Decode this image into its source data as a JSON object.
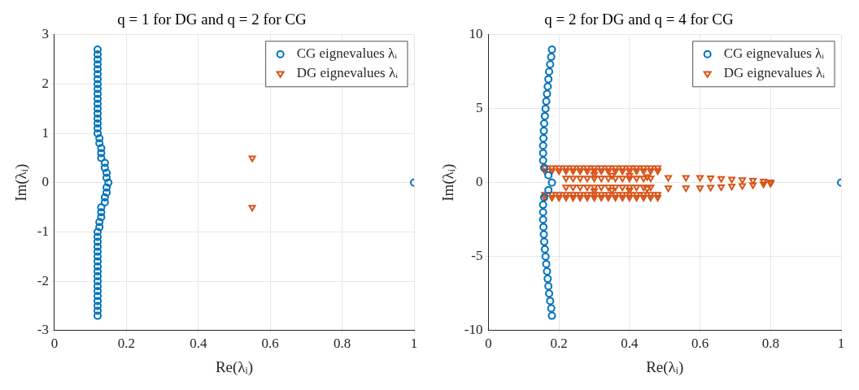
{
  "chart_data": [
    {
      "type": "scatter",
      "title": "q = 1 for DG and q = 2 for CG",
      "xlabel": "Re(λᵢ)",
      "ylabel": "Im(λᵢ)",
      "xlim": [
        0,
        1
      ],
      "xticks": [
        0,
        0.2,
        0.4,
        0.6,
        0.8,
        1
      ],
      "ylim": [
        -3,
        3
      ],
      "yticks": [
        -3,
        -2,
        -1,
        0,
        1,
        2,
        3
      ],
      "grid": true,
      "legend": "top right",
      "series": [
        {
          "name": "CG eignevalues λᵢ",
          "color": "#0072bd",
          "marker": "circle",
          "x": [
            0.12,
            0.12,
            0.12,
            0.12,
            0.12,
            0.12,
            0.12,
            0.12,
            0.12,
            0.12,
            0.12,
            0.12,
            0.12,
            0.12,
            0.12,
            0.12,
            0.12,
            0.12,
            0.125,
            0.125,
            0.13,
            0.13,
            0.13,
            0.14,
            0.14,
            0.145,
            0.145,
            0.15,
            0.145,
            0.145,
            0.14,
            0.14,
            0.13,
            0.13,
            0.13,
            0.125,
            0.125,
            0.12,
            0.12,
            0.12,
            0.12,
            0.12,
            0.12,
            0.12,
            0.12,
            0.12,
            0.12,
            0.12,
            0.12,
            0.12,
            0.12,
            0.12,
            0.12,
            0.12,
            0.12,
            1
          ],
          "values": [
            -2.7,
            -2.6,
            -2.5,
            -2.4,
            -2.3,
            -2.2,
            -2.1,
            -2,
            -1.9,
            -1.8,
            -1.7,
            -1.6,
            -1.5,
            -1.4,
            -1.3,
            -1.2,
            -1.1,
            -1,
            -0.9,
            -0.8,
            -0.7,
            -0.6,
            -0.5,
            -0.4,
            -0.3,
            -0.2,
            -0.1,
            0,
            0.1,
            0.2,
            0.3,
            0.4,
            0.5,
            0.6,
            0.7,
            0.8,
            0.9,
            1,
            1.1,
            1.2,
            1.3,
            1.4,
            1.5,
            1.6,
            1.7,
            1.8,
            1.9,
            2,
            2.1,
            2.2,
            2.3,
            2.4,
            2.5,
            2.6,
            2.7,
            0
          ]
        },
        {
          "name": "DG eignevalues λᵢ",
          "color": "#d95319",
          "marker": "triangle",
          "x": [
            0.55,
            0.55
          ],
          "values": [
            0.5,
            -0.5
          ]
        }
      ]
    },
    {
      "type": "scatter",
      "title": "q = 2 for DG and q = 4 for CG",
      "xlabel": "Re(λᵢ)",
      "ylabel": "Im(λᵢ)",
      "xlim": [
        0,
        1
      ],
      "xticks": [
        0,
        0.2,
        0.4,
        0.6,
        0.8,
        1
      ],
      "ylim": [
        -10,
        10
      ],
      "yticks": [
        -10,
        -5,
        0,
        5,
        10
      ],
      "grid": true,
      "legend": "top right",
      "series": [
        {
          "name": "CG eignevalues λᵢ",
          "color": "#0072bd",
          "marker": "circle",
          "x": [
            0.18,
            0.178,
            0.175,
            0.172,
            0.17,
            0.168,
            0.166,
            0.164,
            0.162,
            0.16,
            0.158,
            0.157,
            0.156,
            0.155,
            0.155,
            0.155,
            0.158,
            0.17,
            0.18,
            0.17,
            0.158,
            0.155,
            0.155,
            0.155,
            0.156,
            0.157,
            0.158,
            0.16,
            0.162,
            0.164,
            0.166,
            0.168,
            0.17,
            0.172,
            0.175,
            0.178,
            0.18,
            1
          ],
          "values": [
            -9,
            -8.5,
            -8,
            -7.5,
            -7,
            -6.5,
            -6,
            -5.5,
            -5,
            -4.5,
            -4,
            -3.5,
            -3,
            -2.5,
            -2,
            -1.5,
            -1,
            -0.5,
            0,
            0.5,
            1,
            1.5,
            2,
            2.5,
            3,
            3.5,
            4,
            4.5,
            5,
            5.5,
            6,
            6.5,
            7,
            7.5,
            8,
            8.5,
            9,
            0
          ]
        },
        {
          "name": "DG eignevalues λᵢ",
          "color": "#d95319",
          "marker": "triangle",
          "x": [
            0.16,
            0.18,
            0.2,
            0.22,
            0.24,
            0.26,
            0.28,
            0.3,
            0.32,
            0.34,
            0.36,
            0.38,
            0.4,
            0.42,
            0.44,
            0.46,
            0.48,
            0.16,
            0.18,
            0.2,
            0.22,
            0.24,
            0.26,
            0.28,
            0.3,
            0.32,
            0.34,
            0.36,
            0.38,
            0.4,
            0.42,
            0.44,
            0.46,
            0.48,
            0.16,
            0.18,
            0.2,
            0.22,
            0.24,
            0.26,
            0.28,
            0.3,
            0.32,
            0.34,
            0.36,
            0.38,
            0.4,
            0.42,
            0.44,
            0.46,
            0.48,
            0.16,
            0.18,
            0.2,
            0.22,
            0.24,
            0.26,
            0.28,
            0.3,
            0.32,
            0.34,
            0.36,
            0.38,
            0.4,
            0.42,
            0.44,
            0.46,
            0.48,
            0.22,
            0.24,
            0.26,
            0.28,
            0.3,
            0.32,
            0.34,
            0.36,
            0.38,
            0.4,
            0.42,
            0.44,
            0.46,
            0.22,
            0.24,
            0.26,
            0.28,
            0.3,
            0.32,
            0.34,
            0.36,
            0.38,
            0.4,
            0.42,
            0.44,
            0.46,
            0.3,
            0.35,
            0.4,
            0.45,
            0.3,
            0.35,
            0.4,
            0.45,
            0.51,
            0.56,
            0.6,
            0.63,
            0.66,
            0.69,
            0.72,
            0.75,
            0.78,
            0.8,
            0.51,
            0.56,
            0.6,
            0.63,
            0.66,
            0.69,
            0.72,
            0.75,
            0.78,
            0.8
          ],
          "values": [
            1,
            1,
            1,
            1,
            1,
            1,
            1,
            1,
            1,
            1,
            1,
            1,
            1,
            1,
            1,
            1,
            1,
            0.8,
            0.8,
            0.8,
            0.8,
            0.8,
            0.8,
            0.8,
            0.8,
            0.8,
            0.8,
            0.8,
            0.8,
            0.8,
            0.8,
            0.8,
            0.8,
            0.8,
            -0.8,
            -0.8,
            -0.8,
            -0.8,
            -0.8,
            -0.8,
            -0.8,
            -0.8,
            -0.8,
            -0.8,
            -0.8,
            -0.8,
            -0.8,
            -0.8,
            -0.8,
            -0.8,
            -0.8,
            -1,
            -1,
            -1,
            -1,
            -1,
            -1,
            -1,
            -1,
            -1,
            -1,
            -1,
            -1,
            -1,
            -1,
            -1,
            -1,
            -1,
            0.3,
            0.3,
            0.3,
            0.3,
            0.3,
            0.3,
            0.3,
            0.3,
            0.3,
            0.3,
            0.3,
            0.3,
            0.3,
            -0.3,
            -0.3,
            -0.3,
            -0.3,
            -0.3,
            -0.3,
            -0.3,
            -0.3,
            -0.3,
            -0.3,
            -0.3,
            -0.3,
            -0.3,
            0.55,
            0.5,
            0.5,
            0.4,
            -0.55,
            -0.5,
            -0.5,
            -0.4,
            0.35,
            0.35,
            0.35,
            0.32,
            0.28,
            0.24,
            0.2,
            0.15,
            0.1,
            0.05,
            -0.35,
            -0.35,
            -0.35,
            -0.32,
            -0.28,
            -0.24,
            -0.2,
            -0.15,
            -0.1,
            -0.05
          ]
        }
      ]
    }
  ]
}
